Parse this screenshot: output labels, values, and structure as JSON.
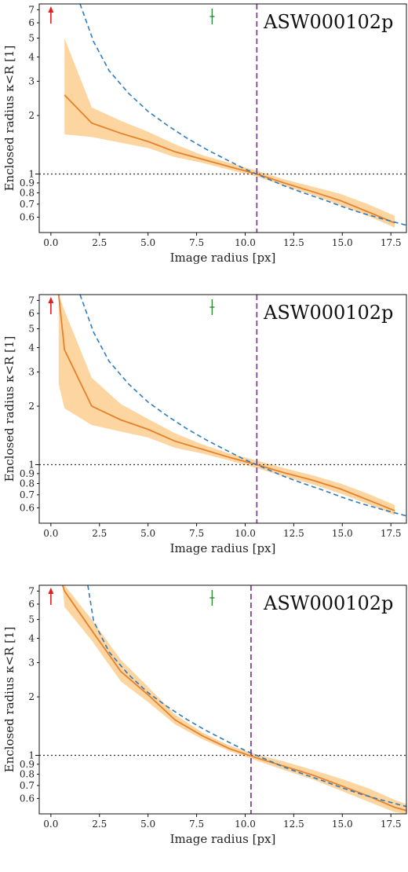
{
  "colors": {
    "median": "#e6812b",
    "band": "#fdd5a1",
    "true_profile": "#2e7cc0",
    "einstein_radius": "#8a3e9e",
    "reference": "#333333",
    "up_arrow": "#e02020",
    "marker": "#2e8b3a"
  },
  "chart_data": [
    {
      "type": "line",
      "title": "ASW000102p",
      "xlabel": "Image radius [px]",
      "ylabel": "Enclosed radius κ<R [1]",
      "xlim": [
        -0.6,
        18.3
      ],
      "ylim": [
        0.5,
        7.5
      ],
      "yscale": "log",
      "xticks": [
        "0.0",
        "2.5",
        "5.0",
        "7.5",
        "10.0",
        "12.5",
        "15.0",
        "17.5"
      ],
      "yticks": [
        "0.6",
        "0.7",
        "0.8",
        "0.9",
        "1",
        "2",
        "3",
        "4",
        "5",
        "6",
        "7"
      ],
      "einstein_radius": 10.6,
      "reference_y": 1.0,
      "series": [
        {
          "x": [
            0.7,
            2.1,
            3.6,
            5.0,
            6.4,
            7.8,
            9.2,
            10.6,
            12.0,
            13.5,
            14.9,
            16.3,
            17.7
          ],
          "y": [
            2.55,
            1.83,
            1.62,
            1.47,
            1.3,
            1.19,
            1.09,
            1.0,
            0.9,
            0.81,
            0.73,
            0.64,
            0.56
          ]
        },
        {
          "x": [
            0.7,
            2.1,
            3.6,
            5.0,
            6.4,
            7.8,
            9.2,
            10.6,
            12.0,
            13.5,
            14.9,
            16.3,
            17.7
          ],
          "y": [
            1.6,
            1.55,
            1.45,
            1.36,
            1.22,
            1.14,
            1.05,
            0.97,
            0.87,
            0.78,
            0.69,
            0.61,
            0.53
          ]
        },
        {
          "x": [
            0.7,
            2.1,
            3.6,
            5.0,
            6.4,
            7.8,
            9.2,
            10.6,
            12.0,
            13.5,
            14.9,
            16.3,
            17.7
          ],
          "y": [
            5.0,
            2.2,
            1.88,
            1.65,
            1.42,
            1.25,
            1.14,
            1.04,
            0.94,
            0.86,
            0.79,
            0.7,
            0.61
          ]
        },
        {
          "x": [
            1.5,
            2.2,
            3.0,
            4.0,
            5.0,
            6.0,
            7.0,
            8.0,
            9.0,
            10.0,
            11.0,
            12.0,
            13.0,
            14.0,
            15.0,
            16.0,
            17.0,
            18.3
          ],
          "y": [
            7.5,
            4.8,
            3.4,
            2.6,
            2.1,
            1.78,
            1.53,
            1.34,
            1.19,
            1.06,
            0.96,
            0.87,
            0.8,
            0.74,
            0.68,
            0.63,
            0.59,
            0.545
          ]
        }
      ]
    },
    {
      "type": "line",
      "title": "ASW000102p",
      "xlabel": "Image radius [px]",
      "ylabel": "Enclosed radius κ<R [1]",
      "xlim": [
        -0.6,
        18.3
      ],
      "ylim": [
        0.5,
        7.5
      ],
      "yscale": "log",
      "xticks": [
        "0.0",
        "2.5",
        "5.0",
        "7.5",
        "10.0",
        "12.5",
        "15.0",
        "17.5"
      ],
      "yticks": [
        "0.6",
        "0.7",
        "0.8",
        "0.9",
        "1",
        "2",
        "3",
        "4",
        "5",
        "6",
        "7"
      ],
      "einstein_radius": 10.6,
      "reference_y": 1.0,
      "series": [
        {
          "x": [
            0.4,
            0.7,
            2.1,
            3.6,
            5.0,
            6.4,
            7.8,
            9.2,
            10.6,
            12.0,
            13.5,
            14.9,
            16.3,
            17.7
          ],
          "y": [
            7.5,
            3.9,
            2.0,
            1.7,
            1.52,
            1.32,
            1.2,
            1.09,
            1.0,
            0.91,
            0.83,
            0.75,
            0.66,
            0.58
          ]
        },
        {
          "x": [
            0.4,
            0.7,
            2.1,
            3.6,
            5.0,
            6.4,
            7.8,
            9.2,
            10.6,
            12.0,
            13.5,
            14.9,
            16.3,
            17.7
          ],
          "y": [
            2.6,
            1.95,
            1.6,
            1.48,
            1.38,
            1.22,
            1.14,
            1.05,
            0.96,
            0.87,
            0.79,
            0.71,
            0.63,
            0.55
          ]
        },
        {
          "x": [
            0.4,
            0.7,
            2.1,
            3.6,
            5.0,
            6.4,
            7.8,
            9.2,
            10.6,
            12.0,
            13.5,
            14.9,
            16.3,
            17.7
          ],
          "y": [
            7.5,
            6.2,
            2.8,
            2.05,
            1.72,
            1.45,
            1.27,
            1.14,
            1.05,
            0.96,
            0.88,
            0.8,
            0.71,
            0.62
          ]
        },
        {
          "x": [
            1.5,
            2.2,
            3.0,
            4.0,
            5.0,
            6.0,
            7.0,
            8.0,
            9.0,
            10.0,
            11.0,
            12.0,
            13.0,
            14.0,
            15.0,
            16.0,
            17.0,
            18.3
          ],
          "y": [
            7.5,
            4.8,
            3.4,
            2.6,
            2.1,
            1.78,
            1.53,
            1.34,
            1.19,
            1.06,
            0.96,
            0.87,
            0.8,
            0.74,
            0.68,
            0.63,
            0.59,
            0.545
          ]
        }
      ]
    },
    {
      "type": "line",
      "title": "ASW000102p",
      "xlabel": "Image radius [px]",
      "ylabel": "Enclosed radius κ<R [1]",
      "xlim": [
        -0.6,
        18.3
      ],
      "ylim": [
        0.5,
        7.5
      ],
      "yscale": "log",
      "xticks": [
        "0.0",
        "2.5",
        "5.0",
        "7.5",
        "10.0",
        "12.5",
        "15.0",
        "17.5"
      ],
      "yticks": [
        "0.6",
        "0.7",
        "0.8",
        "0.9",
        "1",
        "2",
        "3",
        "4",
        "5",
        "6",
        "7"
      ],
      "einstein_radius": 10.3,
      "reference_y": 1.0,
      "series": [
        {
          "x": [
            0.6,
            0.7,
            2.1,
            3.6,
            5.0,
            6.4,
            7.8,
            9.2,
            10.6,
            12.0,
            13.5,
            14.9,
            16.3,
            17.7,
            18.3
          ],
          "y": [
            7.5,
            7.0,
            4.4,
            2.7,
            2.05,
            1.52,
            1.26,
            1.08,
            0.97,
            0.88,
            0.79,
            0.7,
            0.62,
            0.54,
            0.52
          ]
        },
        {
          "x": [
            0.6,
            0.7,
            2.1,
            3.6,
            5.0,
            6.4,
            7.8,
            9.2,
            10.6,
            12.0,
            13.5,
            14.9,
            16.3,
            17.7,
            18.3
          ],
          "y": [
            7.5,
            5.8,
            3.9,
            2.4,
            1.88,
            1.44,
            1.21,
            1.05,
            0.94,
            0.84,
            0.75,
            0.66,
            0.58,
            0.51,
            0.5
          ]
        },
        {
          "x": [
            0.6,
            0.7,
            2.1,
            3.6,
            5.0,
            6.4,
            7.8,
            9.2,
            10.6,
            12.0,
            13.5,
            14.9,
            16.3,
            17.7,
            18.3
          ],
          "y": [
            7.5,
            7.5,
            5.0,
            3.1,
            2.25,
            1.62,
            1.31,
            1.12,
            1.01,
            0.93,
            0.84,
            0.76,
            0.68,
            0.59,
            0.56
          ]
        },
        {
          "x": [
            1.9,
            2.2,
            3.0,
            4.0,
            5.0,
            6.0,
            7.0,
            8.0,
            9.0,
            10.0,
            11.0,
            12.0,
            13.0,
            14.0,
            15.0,
            16.0,
            17.0,
            18.3
          ],
          "y": [
            7.5,
            4.9,
            3.4,
            2.6,
            2.1,
            1.78,
            1.53,
            1.34,
            1.19,
            1.06,
            0.96,
            0.87,
            0.8,
            0.74,
            0.68,
            0.63,
            0.59,
            0.545
          ]
        }
      ]
    }
  ]
}
